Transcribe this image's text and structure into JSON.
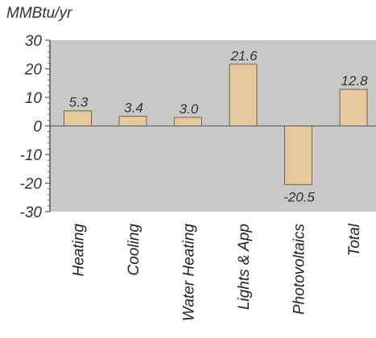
{
  "chart_data": {
    "type": "bar",
    "title": "",
    "ylabel": "MMBtu/yr",
    "xlabel": "",
    "categories": [
      "Heating",
      "Cooling",
      "Water Heating",
      "Lights & App",
      "Photovoltaics",
      "Total"
    ],
    "values": [
      5.3,
      3.4,
      3.0,
      21.6,
      -20.5,
      12.8
    ],
    "value_labels": [
      "5.3",
      "3.4",
      "3.0",
      "21.6",
      "-20.5",
      "12.8"
    ],
    "ylim": [
      -30,
      30
    ],
    "yticks": [
      30,
      20,
      10,
      0,
      -10,
      -20,
      -30
    ],
    "ytick_labels": [
      "30",
      "20",
      "10",
      "0",
      "-10",
      "-20",
      "-30"
    ],
    "grid": false,
    "legend": "none",
    "colors": {
      "plot_background": "#c8c8c6",
      "bar_fill": "#e6c99c",
      "bar_stroke": "#6e6450",
      "axis": "#555555"
    }
  }
}
